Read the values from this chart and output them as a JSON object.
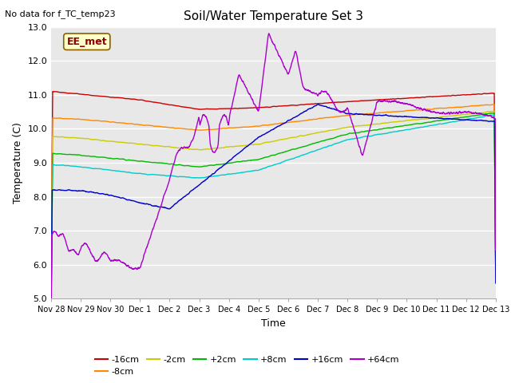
{
  "title": "Soil/Water Temperature Set 3",
  "xlabel": "Time",
  "ylabel": "Temperature (C)",
  "ylim": [
    5.0,
    13.0
  ],
  "yticks": [
    5.0,
    6.0,
    7.0,
    8.0,
    9.0,
    10.0,
    11.0,
    12.0,
    13.0
  ],
  "plot_bg_color": "#e8e8e8",
  "fig_bg_color": "#ffffff",
  "note_text": "No data for f_TC_temp23",
  "legend_box_label": "EE_met",
  "series": {
    "-16cm": {
      "color": "#cc0000"
    },
    "-8cm": {
      "color": "#ff8800"
    },
    "-2cm": {
      "color": "#cccc00"
    },
    "+2cm": {
      "color": "#00bb00"
    },
    "+8cm": {
      "color": "#00cccc"
    },
    "+16cm": {
      "color": "#0000cc"
    },
    "+64cm": {
      "color": "#aa00cc"
    }
  },
  "xtick_labels": [
    "Nov 28",
    "Nov 29",
    "Nov 30",
    "Dec 1",
    "Dec 2",
    "Dec 3",
    "Dec 4",
    "Dec 5",
    "Dec 6",
    "Dec 7",
    "Dec 8",
    "Dec 9",
    "Dec 10",
    "Dec 11",
    "Dec 12",
    "Dec 13"
  ]
}
